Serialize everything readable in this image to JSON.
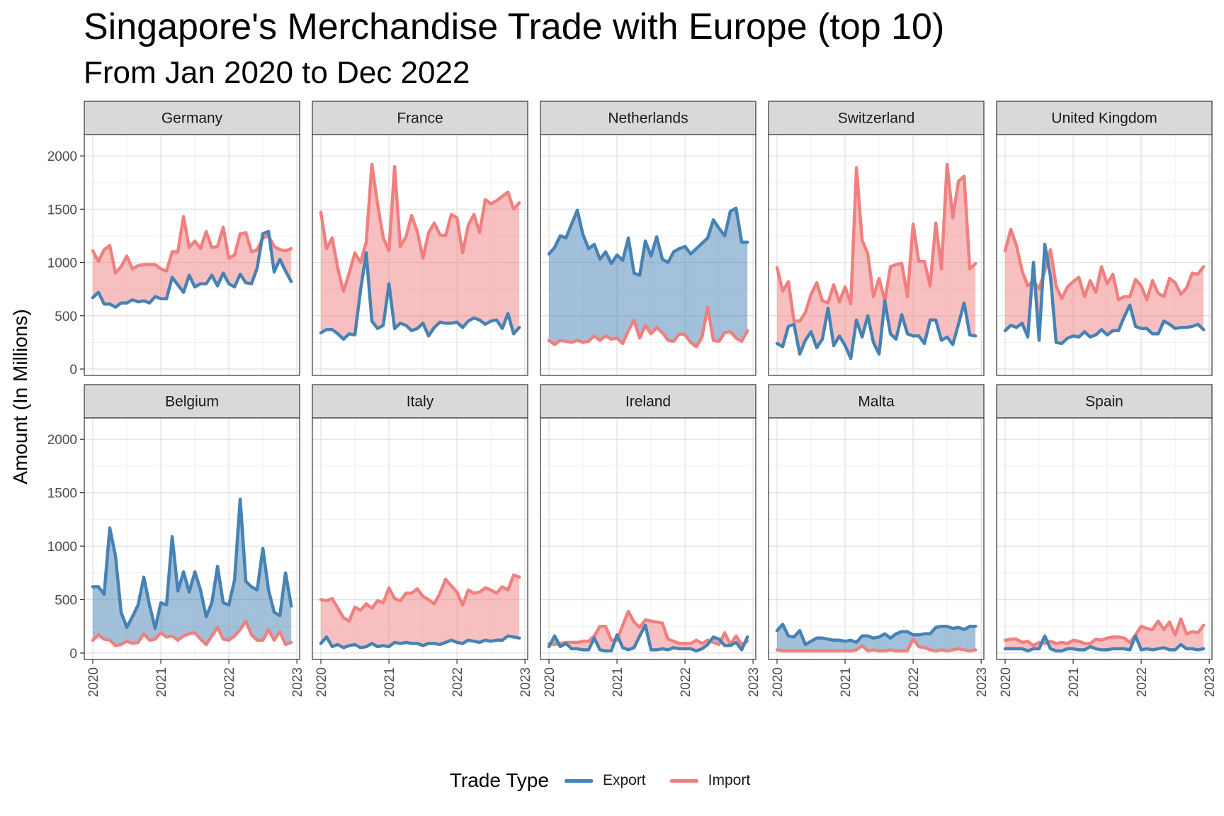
{
  "title": "Singapore's Merchandise Trade with Europe (top 10)",
  "subtitle": "From Jan 2020 to Dec 2022",
  "legend": {
    "title": "Trade Type",
    "items": [
      {
        "label": "Export",
        "color": "#4682B4"
      },
      {
        "label": "Import",
        "color": "#F08080"
      }
    ]
  },
  "chart_data": {
    "type": "area",
    "ylabel": "Amount (In Millions)",
    "xlabel": "",
    "ylim": [
      -60,
      2200
    ],
    "yticks": [
      0,
      500,
      1000,
      1500,
      2000
    ],
    "xlim": [
      2019.875,
      2023.04
    ],
    "xticks": [
      2020,
      2021,
      2022,
      2023
    ],
    "grid": true,
    "legend_position": "bottom",
    "export_color": "#4682B4",
    "import_color": "#F08080",
    "x": [
      "2020-01",
      "2020-02",
      "2020-03",
      "2020-04",
      "2020-05",
      "2020-06",
      "2020-07",
      "2020-08",
      "2020-09",
      "2020-10",
      "2020-11",
      "2020-12",
      "2021-01",
      "2021-02",
      "2021-03",
      "2021-04",
      "2021-05",
      "2021-06",
      "2021-07",
      "2021-08",
      "2021-09",
      "2021-10",
      "2021-11",
      "2021-12",
      "2022-01",
      "2022-02",
      "2022-03",
      "2022-04",
      "2022-05",
      "2022-06",
      "2022-07",
      "2022-08",
      "2022-09",
      "2022-10",
      "2022-11",
      "2022-12"
    ],
    "panels": [
      {
        "country": "Germany",
        "export": [
          670,
          720,
          610,
          610,
          580,
          620,
          620,
          650,
          630,
          640,
          620,
          680,
          660,
          660,
          860,
          790,
          720,
          880,
          770,
          800,
          800,
          880,
          780,
          900,
          800,
          770,
          890,
          810,
          800,
          950,
          1270,
          1290,
          910,
          1030,
          920,
          820
        ],
        "import": [
          1110,
          1010,
          1120,
          1160,
          900,
          960,
          1060,
          940,
          970,
          980,
          980,
          980,
          940,
          920,
          1100,
          1100,
          1430,
          1140,
          1200,
          1130,
          1290,
          1140,
          1150,
          1330,
          1040,
          1070,
          1270,
          1280,
          1100,
          1120,
          1230,
          1250,
          1150,
          1120,
          1110,
          1130
        ]
      },
      {
        "country": "France",
        "export": [
          340,
          370,
          370,
          330,
          280,
          330,
          320,
          740,
          1090,
          450,
          380,
          410,
          800,
          380,
          430,
          410,
          360,
          380,
          430,
          310,
          390,
          440,
          430,
          430,
          440,
          390,
          450,
          480,
          460,
          420,
          450,
          460,
          380,
          520,
          330,
          390
        ],
        "import": [
          1470,
          1130,
          1230,
          940,
          730,
          900,
          1090,
          1000,
          1190,
          1920,
          1550,
          1230,
          1110,
          1900,
          1150,
          1240,
          1440,
          1290,
          1040,
          1280,
          1370,
          1260,
          1250,
          1450,
          1420,
          1090,
          1350,
          1450,
          1280,
          1590,
          1550,
          1580,
          1620,
          1660,
          1500,
          1560
        ]
      },
      {
        "country": "Netherlands",
        "export": [
          1080,
          1140,
          1250,
          1230,
          1360,
          1490,
          1260,
          1130,
          1170,
          1030,
          1100,
          990,
          1070,
          1020,
          1230,
          900,
          880,
          1200,
          1060,
          1240,
          1030,
          1000,
          1100,
          1130,
          1150,
          1080,
          1130,
          1180,
          1230,
          1400,
          1320,
          1250,
          1480,
          1510,
          1190,
          1190
        ],
        "import": [
          270,
          230,
          270,
          260,
          250,
          270,
          250,
          260,
          310,
          270,
          310,
          280,
          290,
          240,
          360,
          460,
          290,
          410,
          330,
          390,
          340,
          270,
          260,
          330,
          320,
          250,
          210,
          300,
          580,
          270,
          260,
          340,
          350,
          290,
          260,
          360
        ]
      },
      {
        "country": "Switzerland",
        "export": [
          240,
          210,
          400,
          420,
          140,
          270,
          350,
          200,
          280,
          570,
          220,
          310,
          220,
          100,
          460,
          300,
          500,
          250,
          140,
          640,
          330,
          280,
          510,
          330,
          310,
          310,
          240,
          460,
          460,
          270,
          300,
          230,
          420,
          620,
          320,
          310
        ],
        "import": [
          950,
          730,
          820,
          450,
          450,
          530,
          700,
          810,
          640,
          620,
          790,
          630,
          770,
          610,
          1890,
          1210,
          1080,
          680,
          850,
          640,
          960,
          980,
          990,
          680,
          1360,
          1010,
          1010,
          780,
          1370,
          940,
          1920,
          1420,
          1760,
          1810,
          940,
          990
        ]
      },
      {
        "country": "United Kingdom",
        "export": [
          360,
          410,
          390,
          430,
          300,
          1000,
          270,
          1170,
          870,
          250,
          240,
          290,
          310,
          300,
          350,
          300,
          320,
          370,
          320,
          360,
          360,
          490,
          600,
          400,
          380,
          380,
          330,
          330,
          450,
          420,
          380,
          390,
          390,
          400,
          420,
          370
        ],
        "import": [
          1110,
          1310,
          1160,
          920,
          780,
          830,
          750,
          920,
          1120,
          780,
          660,
          770,
          820,
          860,
          680,
          830,
          720,
          960,
          800,
          890,
          650,
          680,
          680,
          840,
          780,
          650,
          830,
          710,
          680,
          850,
          810,
          700,
          760,
          900,
          890,
          960
        ]
      },
      {
        "country": "Belgium",
        "export": [
          620,
          620,
          550,
          1170,
          910,
          380,
          240,
          340,
          450,
          710,
          450,
          230,
          470,
          450,
          1090,
          580,
          760,
          570,
          760,
          590,
          340,
          470,
          810,
          470,
          450,
          680,
          1440,
          670,
          620,
          590,
          980,
          590,
          380,
          350,
          750,
          440
        ],
        "import": [
          120,
          170,
          130,
          120,
          70,
          80,
          110,
          90,
          100,
          180,
          120,
          130,
          190,
          150,
          160,
          120,
          160,
          180,
          190,
          130,
          80,
          160,
          240,
          130,
          120,
          160,
          220,
          300,
          170,
          120,
          120,
          220,
          120,
          200,
          80,
          100
        ]
      },
      {
        "country": "Italy",
        "export": [
          90,
          150,
          60,
          80,
          50,
          70,
          80,
          50,
          60,
          90,
          60,
          70,
          60,
          100,
          90,
          100,
          90,
          90,
          70,
          90,
          90,
          80,
          100,
          120,
          100,
          90,
          120,
          110,
          100,
          120,
          110,
          120,
          120,
          160,
          150,
          140
        ],
        "import": [
          500,
          490,
          510,
          420,
          330,
          300,
          430,
          400,
          460,
          420,
          490,
          470,
          610,
          510,
          490,
          560,
          560,
          600,
          530,
          500,
          460,
          560,
          690,
          630,
          570,
          450,
          590,
          560,
          570,
          610,
          590,
          560,
          620,
          590,
          730,
          710
        ]
      },
      {
        "country": "Ireland",
        "export": [
          60,
          160,
          60,
          90,
          40,
          40,
          30,
          30,
          140,
          30,
          20,
          20,
          170,
          50,
          30,
          50,
          160,
          260,
          30,
          30,
          40,
          30,
          50,
          40,
          40,
          40,
          20,
          40,
          80,
          150,
          130,
          70,
          70,
          100,
          30,
          150
        ],
        "import": [
          90,
          80,
          90,
          100,
          100,
          100,
          110,
          110,
          160,
          250,
          250,
          120,
          120,
          260,
          390,
          290,
          240,
          310,
          300,
          290,
          280,
          130,
          110,
          90,
          90,
          90,
          120,
          90,
          120,
          100,
          80,
          190,
          80,
          160,
          80,
          110
        ]
      },
      {
        "country": "Malta",
        "export": [
          210,
          270,
          160,
          150,
          210,
          80,
          110,
          140,
          140,
          130,
          120,
          120,
          110,
          120,
          100,
          160,
          160,
          140,
          150,
          180,
          140,
          180,
          200,
          200,
          170,
          170,
          180,
          180,
          240,
          250,
          250,
          230,
          240,
          220,
          250,
          250
        ],
        "import": [
          30,
          20,
          20,
          20,
          20,
          20,
          20,
          20,
          20,
          20,
          20,
          20,
          20,
          20,
          30,
          70,
          20,
          30,
          20,
          20,
          30,
          20,
          20,
          20,
          130,
          60,
          50,
          30,
          20,
          30,
          20,
          30,
          40,
          30,
          20,
          30
        ]
      },
      {
        "country": "Spain",
        "export": [
          40,
          40,
          40,
          40,
          20,
          40,
          40,
          160,
          40,
          20,
          20,
          40,
          40,
          30,
          30,
          60,
          40,
          30,
          30,
          40,
          40,
          40,
          30,
          160,
          30,
          40,
          30,
          40,
          50,
          30,
          30,
          80,
          40,
          40,
          30,
          40
        ],
        "import": [
          120,
          130,
          130,
          100,
          110,
          70,
          100,
          90,
          110,
          90,
          100,
          90,
          120,
          110,
          90,
          90,
          130,
          120,
          140,
          150,
          150,
          140,
          100,
          170,
          250,
          230,
          220,
          300,
          220,
          290,
          170,
          320,
          180,
          200,
          190,
          260
        ]
      }
    ]
  }
}
